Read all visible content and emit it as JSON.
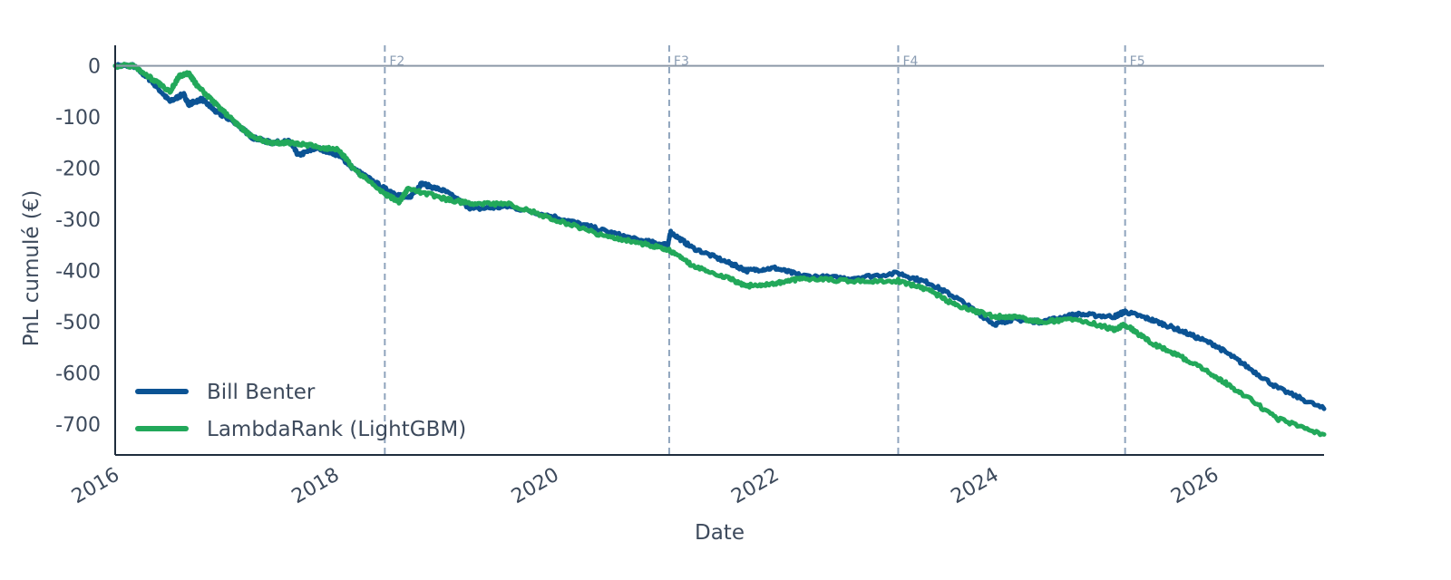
{
  "chart_data": {
    "type": "line",
    "title": "",
    "xlabel": "Date",
    "ylabel": "PnL cumulé (€)",
    "x_ticks": [
      "2016",
      "2018",
      "2020",
      "2022",
      "2024",
      "2026"
    ],
    "y_ticks": [
      0,
      -100,
      -200,
      -300,
      -400,
      -500,
      -600,
      -700
    ],
    "xlim": [
      "2016-01-01",
      "2026-12-31"
    ],
    "ylim": [
      -760,
      40
    ],
    "grid": false,
    "legend_position": "bottom-left",
    "zero_line": true,
    "fold_markers": [
      {
        "label": "F2",
        "date": "2018-06-15"
      },
      {
        "label": "F3",
        "date": "2021-01-15"
      },
      {
        "label": "F4",
        "date": "2023-02-15"
      },
      {
        "label": "F5",
        "date": "2025-03-10"
      }
    ],
    "series": [
      {
        "name": "Bill Benter",
        "color": "#0b5394",
        "points": [
          [
            "2016-01-01",
            0
          ],
          [
            "2016-03-01",
            0
          ],
          [
            "2016-05-01",
            -30
          ],
          [
            "2016-07-01",
            -70
          ],
          [
            "2016-08-15",
            -55
          ],
          [
            "2016-09-01",
            -75
          ],
          [
            "2016-10-15",
            -65
          ],
          [
            "2016-12-01",
            -90
          ],
          [
            "2017-02-01",
            -110
          ],
          [
            "2017-04-01",
            -140
          ],
          [
            "2017-06-01",
            -150
          ],
          [
            "2017-08-01",
            -148
          ],
          [
            "2017-09-01",
            -175
          ],
          [
            "2017-11-01",
            -160
          ],
          [
            "2018-01-15",
            -175
          ],
          [
            "2018-03-01",
            -200
          ],
          [
            "2018-06-15",
            -240
          ],
          [
            "2018-09-01",
            -260
          ],
          [
            "2018-10-15",
            -230
          ],
          [
            "2019-01-01",
            -245
          ],
          [
            "2019-04-01",
            -280
          ],
          [
            "2019-08-01",
            -275
          ],
          [
            "2020-01-01",
            -295
          ],
          [
            "2020-06-01",
            -320
          ],
          [
            "2020-10-01",
            -340
          ],
          [
            "2021-01-10",
            -350
          ],
          [
            "2021-01-20",
            -325
          ],
          [
            "2021-04-01",
            -355
          ],
          [
            "2021-08-01",
            -385
          ],
          [
            "2021-10-01",
            -400
          ],
          [
            "2022-01-01",
            -395
          ],
          [
            "2022-04-01",
            -410
          ],
          [
            "2022-09-01",
            -415
          ],
          [
            "2023-02-15",
            -405
          ],
          [
            "2023-06-01",
            -425
          ],
          [
            "2023-09-01",
            -455
          ],
          [
            "2024-01-01",
            -505
          ],
          [
            "2024-03-01",
            -495
          ],
          [
            "2024-06-01",
            -500
          ],
          [
            "2024-10-01",
            -485
          ],
          [
            "2025-02-01",
            -490
          ],
          [
            "2025-03-10",
            -480
          ],
          [
            "2025-06-01",
            -495
          ],
          [
            "2025-09-01",
            -515
          ],
          [
            "2026-01-01",
            -545
          ],
          [
            "2026-04-01",
            -580
          ],
          [
            "2026-08-01",
            -630
          ],
          [
            "2026-12-31",
            -670
          ]
        ]
      },
      {
        "name": "LambdaRank (LightGBM)",
        "color": "#22a85a",
        "points": [
          [
            "2016-01-01",
            0
          ],
          [
            "2016-03-01",
            0
          ],
          [
            "2016-05-01",
            -25
          ],
          [
            "2016-07-01",
            -50
          ],
          [
            "2016-08-01",
            -20
          ],
          [
            "2016-09-01",
            -15
          ],
          [
            "2016-10-01",
            -40
          ],
          [
            "2016-12-01",
            -75
          ],
          [
            "2017-02-01",
            -110
          ],
          [
            "2017-04-01",
            -140
          ],
          [
            "2017-06-01",
            -150
          ],
          [
            "2017-08-01",
            -150
          ],
          [
            "2017-10-01",
            -155
          ],
          [
            "2018-01-15",
            -165
          ],
          [
            "2018-03-01",
            -200
          ],
          [
            "2018-06-15",
            -250
          ],
          [
            "2018-08-01",
            -265
          ],
          [
            "2018-09-01",
            -240
          ],
          [
            "2019-01-01",
            -260
          ],
          [
            "2019-04-01",
            -270
          ],
          [
            "2019-08-01",
            -270
          ],
          [
            "2020-01-01",
            -300
          ],
          [
            "2020-06-01",
            -330
          ],
          [
            "2020-10-01",
            -345
          ],
          [
            "2021-01-15",
            -360
          ],
          [
            "2021-04-01",
            -390
          ],
          [
            "2021-08-01",
            -415
          ],
          [
            "2021-10-01",
            -430
          ],
          [
            "2022-01-01",
            -425
          ],
          [
            "2022-04-01",
            -415
          ],
          [
            "2022-09-01",
            -420
          ],
          [
            "2023-02-15",
            -420
          ],
          [
            "2023-06-01",
            -440
          ],
          [
            "2023-09-01",
            -470
          ],
          [
            "2024-01-01",
            -490
          ],
          [
            "2024-03-01",
            -490
          ],
          [
            "2024-06-01",
            -500
          ],
          [
            "2024-10-01",
            -495
          ],
          [
            "2025-02-01",
            -515
          ],
          [
            "2025-03-10",
            -505
          ],
          [
            "2025-06-01",
            -540
          ],
          [
            "2025-09-01",
            -565
          ],
          [
            "2026-01-01",
            -605
          ],
          [
            "2026-04-01",
            -640
          ],
          [
            "2026-08-01",
            -690
          ],
          [
            "2026-12-31",
            -720
          ]
        ]
      }
    ]
  }
}
